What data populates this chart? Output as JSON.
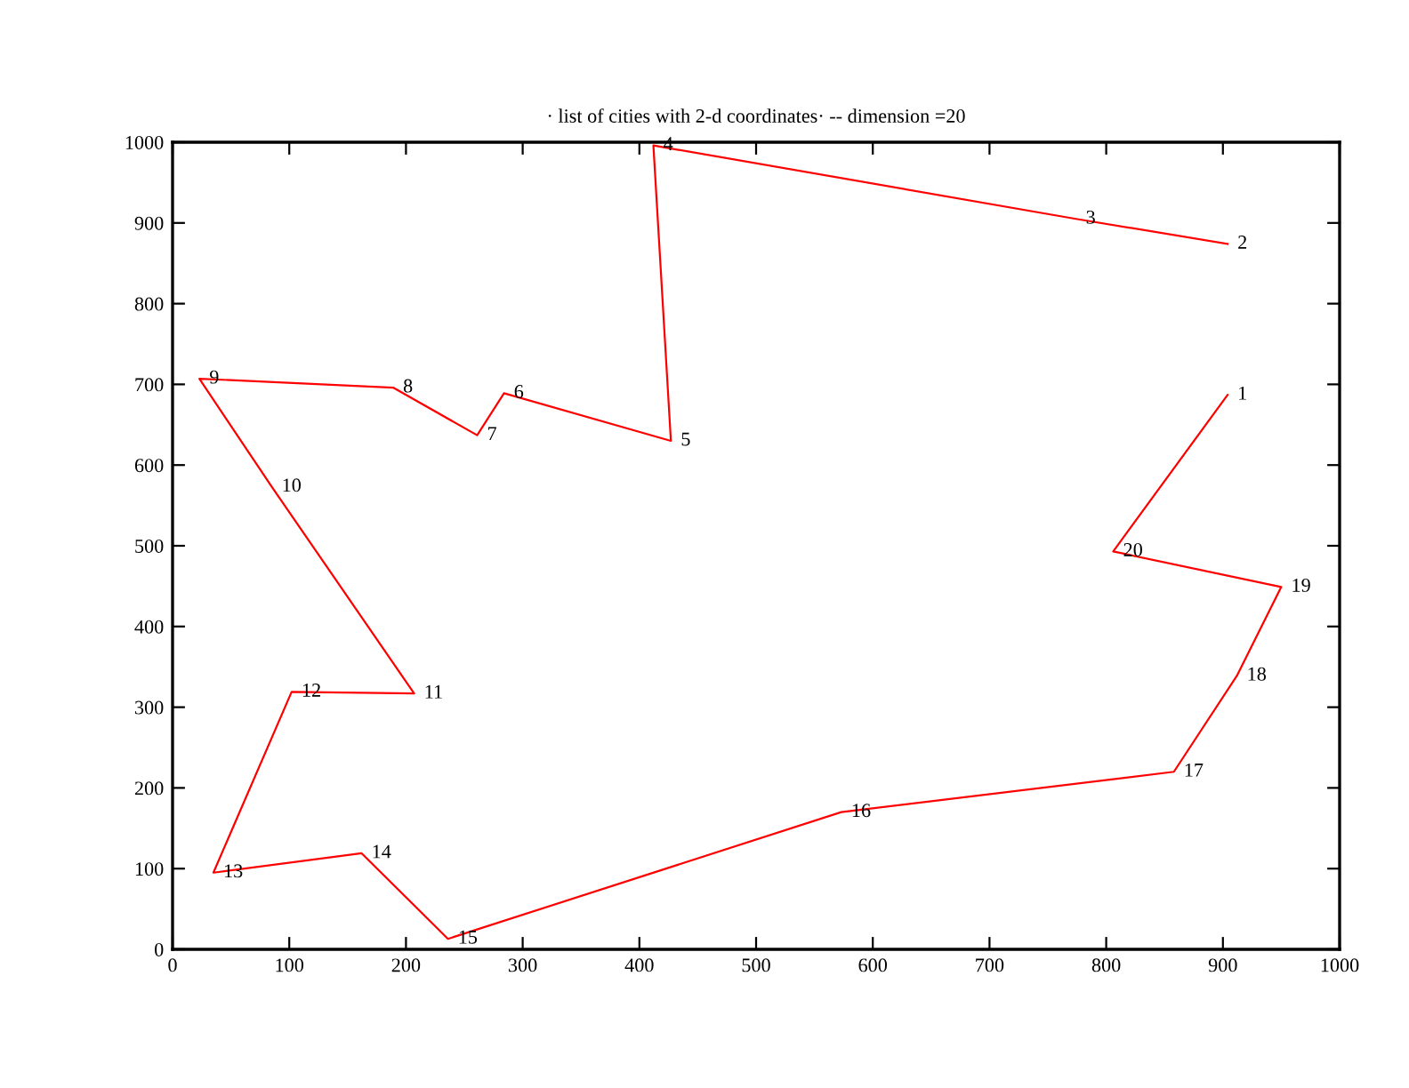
{
  "chart_data": {
    "type": "line",
    "title": "· list of cities with 2-d coordinates· -- dimension =20",
    "series": [
      {
        "color": "#ff0000",
        "x": [
          904,
          774,
          412,
          427,
          284,
          261,
          189,
          23,
          85,
          207,
          102,
          35,
          162,
          236,
          573,
          858,
          912,
          950,
          806,
          904
        ],
        "values": [
          874,
          905,
          996,
          630,
          689,
          637,
          696,
          707,
          573,
          317,
          319,
          95,
          119,
          13,
          170,
          220,
          339,
          449,
          493,
          687
        ]
      }
    ],
    "annotations": [
      {
        "text": "1",
        "x": 904,
        "y": 687
      },
      {
        "text": "2",
        "x": 904,
        "y": 874
      },
      {
        "text": "3",
        "x": 774,
        "y": 905
      },
      {
        "text": "4",
        "x": 412,
        "y": 996
      },
      {
        "text": "5",
        "x": 427,
        "y": 630
      },
      {
        "text": "6",
        "x": 284,
        "y": 689
      },
      {
        "text": "7",
        "x": 261,
        "y": 637
      },
      {
        "text": "8",
        "x": 189,
        "y": 696
      },
      {
        "text": "9",
        "x": 23,
        "y": 707
      },
      {
        "text": "10",
        "x": 85,
        "y": 573
      },
      {
        "text": "11",
        "x": 207,
        "y": 317
      },
      {
        "text": "12",
        "x": 102,
        "y": 319
      },
      {
        "text": "13",
        "x": 35,
        "y": 95
      },
      {
        "text": "14",
        "x": 162,
        "y": 119
      },
      {
        "text": "15",
        "x": 236,
        "y": 13
      },
      {
        "text": "16",
        "x": 573,
        "y": 170
      },
      {
        "text": "17",
        "x": 858,
        "y": 220
      },
      {
        "text": "18",
        "x": 912,
        "y": 339
      },
      {
        "text": "19",
        "x": 950,
        "y": 449
      },
      {
        "text": "20",
        "x": 806,
        "y": 493
      }
    ],
    "xlim": [
      0,
      1000
    ],
    "ylim": [
      0,
      1000
    ],
    "xticks": [
      0,
      100,
      200,
      300,
      400,
      500,
      600,
      700,
      800,
      900,
      1000
    ],
    "yticks": [
      0,
      100,
      200,
      300,
      400,
      500,
      600,
      700,
      800,
      900,
      1000
    ],
    "grid": false,
    "legend": false,
    "marker": "none",
    "line_style": "solid"
  }
}
